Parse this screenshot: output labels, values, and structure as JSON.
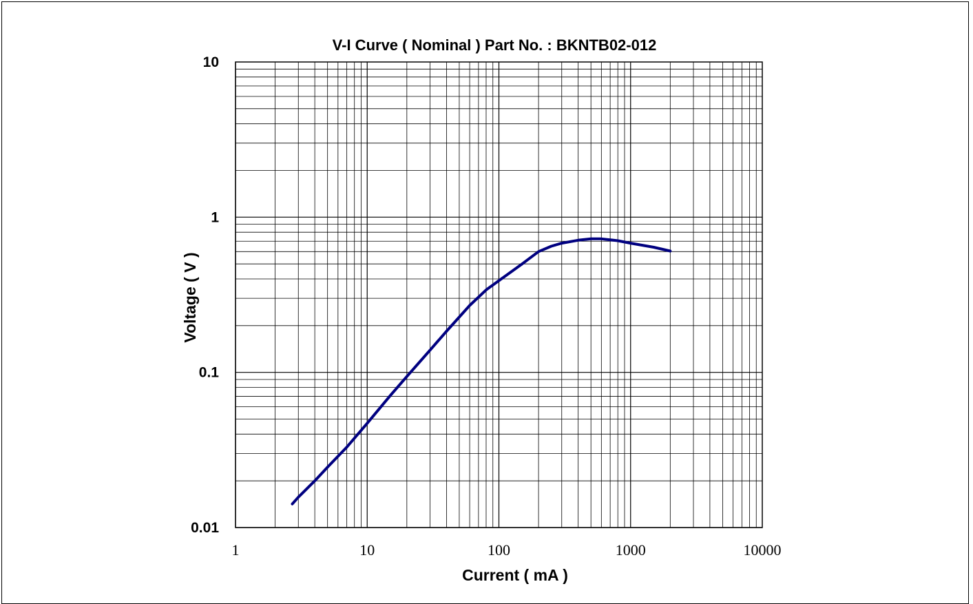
{
  "chart_data": {
    "type": "line",
    "title": "V-I Curve ( Nominal ) Part No. : BKNTB02-012",
    "xlabel": "Current ( mA )",
    "ylabel": "Voltage  ( V )",
    "x_scale": "log",
    "y_scale": "log",
    "xlim": [
      1,
      10000
    ],
    "ylim": [
      0.01,
      10
    ],
    "grid": true,
    "x_ticks": [
      1,
      10,
      100,
      1000,
      10000
    ],
    "x_tick_labels": [
      "1",
      "10",
      "100",
      "1000",
      "10000"
    ],
    "y_ticks": [
      0.01,
      0.1,
      1,
      10
    ],
    "y_tick_labels": [
      "0.01",
      "0.1",
      "1",
      "10"
    ],
    "series": [
      {
        "color": "#000080",
        "x": [
          2.7,
          3.0,
          4.0,
          5.0,
          7.0,
          10,
          15,
          20,
          30,
          40,
          60,
          80,
          100,
          150,
          200,
          250,
          300,
          400,
          500,
          600,
          800,
          1000,
          1500,
          2000
        ],
        "y": [
          0.0142,
          0.0157,
          0.02,
          0.0245,
          0.033,
          0.047,
          0.071,
          0.094,
          0.139,
          0.184,
          0.27,
          0.34,
          0.39,
          0.5,
          0.6,
          0.65,
          0.68,
          0.71,
          0.725,
          0.725,
          0.705,
          0.68,
          0.64,
          0.605
        ]
      }
    ]
  }
}
